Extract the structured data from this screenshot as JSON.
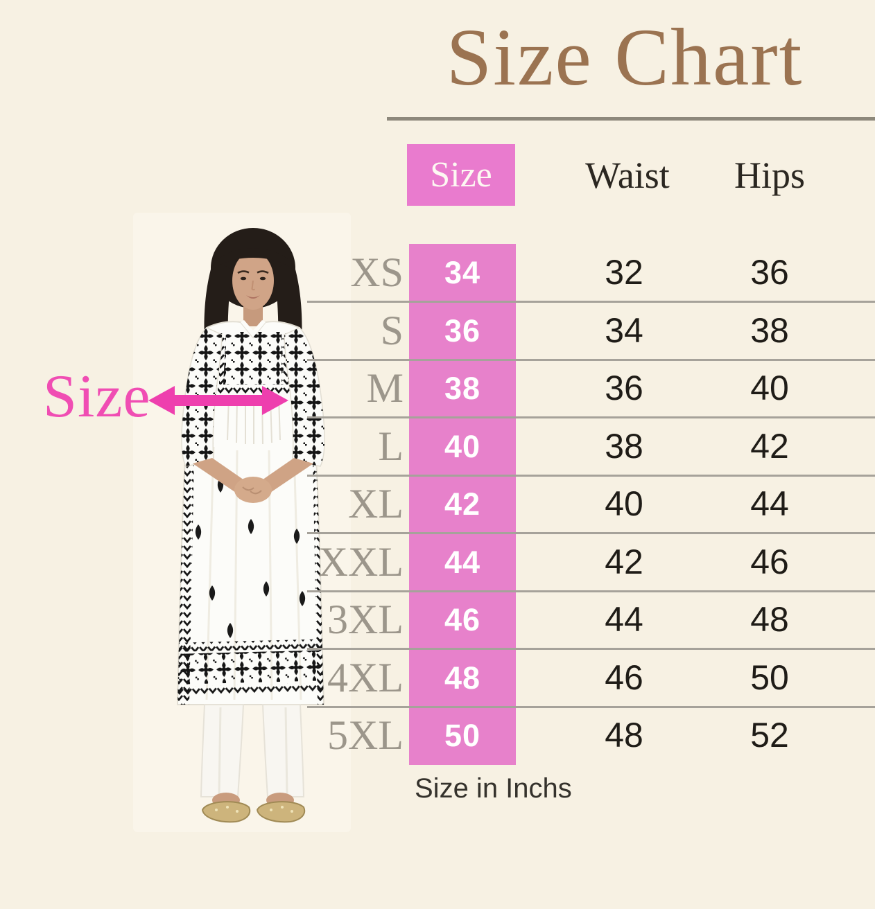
{
  "page": {
    "title": "Size Chart",
    "footnote": "Size in Inchs"
  },
  "annotation": {
    "label": "Size",
    "arrow_icon": "double-headed-measure-arrow"
  },
  "table": {
    "columns": [
      "Size",
      "Waist",
      "Hips"
    ],
    "rows": [
      {
        "label": "XS",
        "size": "34",
        "waist": "32",
        "hips": "36"
      },
      {
        "label": "S",
        "size": "36",
        "waist": "34",
        "hips": "38"
      },
      {
        "label": "M",
        "size": "38",
        "waist": "36",
        "hips": "40"
      },
      {
        "label": "L",
        "size": "40",
        "waist": "38",
        "hips": "42"
      },
      {
        "label": "XL",
        "size": "42",
        "waist": "40",
        "hips": "44"
      },
      {
        "label": "XXL",
        "size": "44",
        "waist": "42",
        "hips": "46"
      },
      {
        "label": "3XL",
        "size": "46",
        "waist": "44",
        "hips": "48"
      },
      {
        "label": "4XL",
        "size": "48",
        "waist": "46",
        "hips": "50"
      },
      {
        "label": "5XL",
        "size": "50",
        "waist": "48",
        "hips": "52"
      }
    ]
  },
  "chart_data": {
    "type": "table",
    "title": "Size Chart",
    "columns": [
      "Size",
      "Waist",
      "Hips"
    ],
    "row_labels": [
      "XS",
      "S",
      "M",
      "L",
      "XL",
      "XXL",
      "3XL",
      "4XL",
      "5XL"
    ],
    "series": [
      {
        "name": "Size",
        "values": [
          34,
          36,
          38,
          40,
          42,
          44,
          46,
          48,
          50
        ]
      },
      {
        "name": "Waist",
        "values": [
          32,
          34,
          36,
          38,
          40,
          42,
          44,
          46,
          48
        ]
      },
      {
        "name": "Hips",
        "values": [
          36,
          38,
          40,
          42,
          44,
          46,
          48,
          50,
          52
        ]
      }
    ],
    "unit_note": "Size in Inchs"
  },
  "colors": {
    "background": "#f7f1e3",
    "title_brown": "#9b7351",
    "accent_pink": "#e781cb",
    "annotation_pink": "#ee3fae",
    "row_label_gray": "#9c968b",
    "divider_gray": "#a6a29a",
    "text_dark": "#1f1c17"
  },
  "photo": {
    "alt": "model-in-white-embroidered-kurta"
  }
}
